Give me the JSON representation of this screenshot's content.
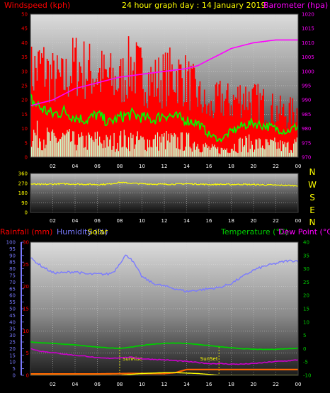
{
  "header": {
    "title": "24 hour graph day : 14 January 2019",
    "left_title": "Windspeed (kph)",
    "right_title": "Barometer (hpa)",
    "colors": {
      "title": "#ffff00",
      "left": "#ff0000",
      "right": "#ff00ff"
    }
  },
  "chart_data": [
    {
      "type": "line",
      "name": "wind-barometer",
      "x_ticks": [
        "02",
        "04",
        "06",
        "08",
        "10",
        "12",
        "14",
        "16",
        "18",
        "20",
        "22",
        "00"
      ],
      "left_axis": {
        "label": "Windspeed (kph)",
        "range": [
          0,
          50
        ],
        "ticks": [
          0,
          5,
          10,
          15,
          20,
          25,
          30,
          35,
          40,
          45,
          50
        ]
      },
      "right_axis": {
        "label": "Barometer (hpa)",
        "range": [
          970,
          1020
        ],
        "ticks": [
          970,
          975,
          980,
          985,
          990,
          995,
          1000,
          1005,
          1010,
          1015,
          1020
        ]
      },
      "grid": true,
      "series": [
        {
          "color": "#ff0000",
          "axis": "left",
          "kind": "bars",
          "hours": [
            0,
            1,
            2,
            3,
            4,
            5,
            6,
            7,
            8,
            9,
            10,
            11,
            12,
            13,
            14,
            15,
            16,
            17,
            18,
            19,
            20,
            21,
            22,
            23,
            24
          ],
          "values": [
            40,
            44,
            38,
            36,
            45,
            42,
            40,
            38,
            36,
            44,
            40,
            36,
            38,
            40,
            37,
            30,
            22,
            28,
            26,
            30,
            27,
            25,
            22,
            21,
            22
          ]
        },
        {
          "color": "#00ff00",
          "axis": "left",
          "hours": [
            0,
            1,
            2,
            3,
            4,
            5,
            6,
            7,
            8,
            9,
            10,
            11,
            12,
            13,
            14,
            15,
            16,
            17,
            18,
            19,
            20,
            21,
            22,
            23,
            24
          ],
          "values": [
            20,
            17,
            15,
            16,
            14,
            13,
            15,
            12,
            14,
            15,
            14,
            13,
            15,
            14,
            13,
            12,
            8,
            6,
            9,
            11,
            12,
            11,
            10,
            9,
            11
          ]
        },
        {
          "color": "#ccffcc",
          "axis": "left",
          "kind": "bars",
          "hours": [
            0,
            1,
            2,
            3,
            4,
            5,
            6,
            7,
            8,
            9,
            10,
            11,
            12,
            13,
            14,
            15,
            16,
            17,
            18,
            19,
            20,
            21,
            22,
            23,
            24
          ],
          "values": [
            14,
            12,
            10,
            11,
            9,
            9,
            10,
            8,
            10,
            10,
            9,
            9,
            10,
            9,
            9,
            8,
            5,
            4,
            6,
            8,
            8,
            7,
            7,
            6,
            8
          ]
        },
        {
          "color": "#ff00ff",
          "axis": "right",
          "hours": [
            0,
            1,
            2,
            3,
            4,
            5,
            6,
            7,
            8,
            9,
            10,
            11,
            12,
            13,
            14,
            15,
            16,
            17,
            18,
            19,
            20,
            21,
            22,
            23,
            24
          ],
          "values": [
            988,
            989,
            990,
            992,
            994,
            995,
            996,
            997,
            998,
            998.5,
            999,
            999.5,
            1000,
            1000.5,
            1001,
            1002,
            1004,
            1006,
            1008,
            1009,
            1010,
            1010.5,
            1011,
            1011,
            1011
          ]
        }
      ]
    },
    {
      "type": "line",
      "name": "wind-direction",
      "x_ticks": [
        "02",
        "04",
        "06",
        "08",
        "10",
        "12",
        "14",
        "16",
        "18",
        "20",
        "22",
        "00"
      ],
      "left_axis": {
        "range": [
          0,
          360
        ],
        "ticks": [
          0,
          90,
          180,
          270,
          360
        ]
      },
      "compass": [
        "N",
        "W",
        "S",
        "E",
        "N"
      ],
      "series": [
        {
          "color": "#ffff00",
          "hours": [
            0,
            1,
            2,
            3,
            4,
            5,
            6,
            7,
            8,
            9,
            10,
            11,
            12,
            13,
            14,
            15,
            16,
            17,
            18,
            19,
            20,
            21,
            22,
            23,
            24
          ],
          "values": [
            262,
            258,
            262,
            265,
            262,
            260,
            258,
            262,
            278,
            270,
            265,
            262,
            260,
            262,
            265,
            262,
            258,
            260,
            258,
            260,
            257,
            255,
            252,
            250,
            248
          ]
        }
      ]
    },
    {
      "type": "line",
      "name": "temperature-humidity",
      "x_ticks": [
        "02",
        "04",
        "06",
        "08",
        "10",
        "12",
        "14",
        "16",
        "18",
        "20",
        "22",
        "00"
      ],
      "labels": {
        "rainfall": "Rainfall (mm)",
        "humidity": "Humidity (%)",
        "solar": "Solar",
        "temperature": "Temperature (°C)",
        "dewpoint": "Dew Point (°C)",
        "sunrise": "SunRise",
        "sunset": "SunSet"
      },
      "left_axis_humidity": {
        "range": [
          0,
          100
        ],
        "ticks": [
          0,
          5,
          10,
          15,
          20,
          25,
          30,
          35,
          40,
          45,
          50,
          55,
          60,
          65,
          70,
          75,
          80,
          85,
          90,
          95,
          100
        ]
      },
      "left_axis_rain": {
        "range": [
          0,
          30
        ],
        "ticks": [
          0,
          5,
          10,
          15,
          20,
          25,
          30
        ]
      },
      "right_axis": {
        "range": [
          -10,
          40
        ],
        "ticks": [
          -10,
          -5,
          0,
          5,
          10,
          15,
          20,
          25,
          30,
          35,
          40
        ]
      },
      "sunrise_hour": 8.0,
      "sunset_hour": 16.9,
      "series": [
        {
          "color": "#7a7aff",
          "axis": "humidity",
          "hours": [
            0,
            1,
            2,
            3,
            4,
            5,
            6,
            7,
            7.5,
            8,
            8.5,
            9,
            10,
            11,
            12,
            13,
            14,
            15,
            16,
            17,
            18,
            19,
            20,
            21,
            22,
            23,
            24
          ],
          "values": [
            88,
            82,
            77,
            77,
            78,
            76,
            76,
            76,
            78,
            84,
            90,
            88,
            74,
            69,
            67,
            65,
            63,
            64,
            65,
            66,
            69,
            74,
            79,
            82,
            84,
            86,
            86
          ]
        },
        {
          "color": "#00cc00",
          "axis": "temp",
          "hours": [
            0,
            1,
            2,
            3,
            4,
            5,
            6,
            7,
            8,
            9,
            10,
            11,
            12,
            13,
            14,
            15,
            16,
            17,
            18,
            19,
            20,
            21,
            22,
            23,
            24
          ],
          "values": [
            2.5,
            2.2,
            2,
            1.7,
            1.4,
            1,
            0.6,
            0.3,
            0.1,
            0.6,
            1.2,
            1.7,
            2,
            2.1,
            2,
            1.6,
            1.2,
            0.7,
            0.3,
            0,
            -0.2,
            -0.3,
            -0.2,
            0,
            0.2
          ]
        },
        {
          "color": "#cc00cc",
          "axis": "temp",
          "hours": [
            0,
            1,
            2,
            3,
            4,
            5,
            6,
            7,
            8,
            9,
            10,
            11,
            12,
            13,
            14,
            15,
            16,
            17,
            18,
            19,
            20,
            21,
            22,
            23,
            24
          ],
          "values": [
            0,
            -1,
            -1.5,
            -2,
            -2.5,
            -2.8,
            -3.5,
            -3.6,
            -3.4,
            -3.2,
            -3.8,
            -4,
            -4.2,
            -4.5,
            -4.8,
            -5.2,
            -5.6,
            -5.6,
            -5.8,
            -5.8,
            -5.6,
            -5.2,
            -4.8,
            -4.6,
            -4.2
          ]
        },
        {
          "color": "#ff6600",
          "axis": "rain",
          "hours": [
            0,
            3,
            6,
            9,
            12,
            13,
            14,
            15,
            16,
            18,
            20,
            22,
            24
          ],
          "values": [
            0.3,
            0.3,
            0.3,
            0.4,
            0.4,
            0.6,
            1.3,
            1.3,
            1.3,
            1.3,
            1.3,
            1.3,
            1.3
          ]
        },
        {
          "color": "#ffff00",
          "axis": "rain",
          "hours": [
            0,
            8,
            9,
            10,
            11,
            12,
            13,
            14,
            15,
            16,
            17,
            18,
            24
          ],
          "values": [
            0,
            0,
            0.2,
            0.4,
            0.5,
            0.6,
            0.6,
            0.5,
            0.4,
            0.2,
            0,
            0,
            0
          ]
        }
      ]
    }
  ]
}
